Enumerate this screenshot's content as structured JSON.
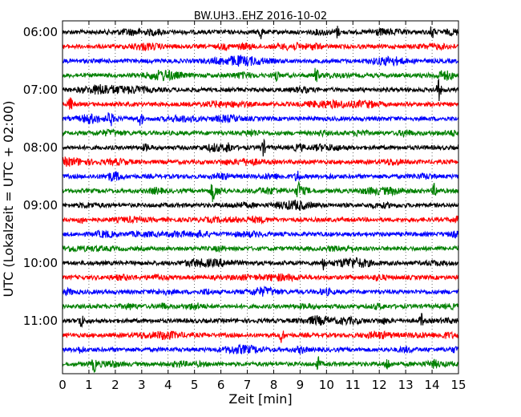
{
  "chart_data": {
    "type": "line",
    "title": "BW.UH3..EHZ 2016-10-02",
    "xlabel": "Zeit  [min]",
    "ylabel": "UTC (Lokalzeit = UTC + 02:00)",
    "xlim": [
      0,
      15
    ],
    "x_ticks": [
      "0",
      "1",
      "2",
      "3",
      "4",
      "5",
      "6",
      "7",
      "8",
      "9",
      "10",
      "11",
      "12",
      "13",
      "14",
      "15"
    ],
    "y_tick_labels": [
      "06:00",
      "07:00",
      "08:00",
      "09:00",
      "10:00",
      "11:00"
    ],
    "y_tick_trace_index": [
      0,
      4,
      8,
      12,
      16,
      20
    ],
    "grid_x": "dotted",
    "trace_interval_min": 15,
    "trace_colors": [
      "#000000",
      "#ff0000",
      "#0000ff",
      "#008000"
    ],
    "trace_start_times": [
      "06:00",
      "06:15",
      "06:30",
      "06:45",
      "07:00",
      "07:15",
      "07:30",
      "07:45",
      "08:00",
      "08:15",
      "08:30",
      "08:45",
      "09:00",
      "09:15",
      "09:30",
      "09:45",
      "10:00",
      "10:15",
      "10:30",
      "10:45",
      "11:00",
      "11:15",
      "11:30",
      "11:45"
    ],
    "events": [
      {
        "trace": 0,
        "x": 7.5,
        "amp": 1.6
      },
      {
        "trace": 0,
        "x": 10.4,
        "amp": 1.3
      },
      {
        "trace": 0,
        "x": 14.0,
        "amp": 1.4
      },
      {
        "trace": 3,
        "x": 9.6,
        "amp": 1.7
      },
      {
        "trace": 3,
        "x": 8.1,
        "amp": 1.3
      },
      {
        "trace": 4,
        "x": 14.25,
        "amp": 2.4
      },
      {
        "trace": 5,
        "x": 0.3,
        "amp": 1.5
      },
      {
        "trace": 6,
        "x": 1.8,
        "amp": 1.5
      },
      {
        "trace": 6,
        "x": 2.95,
        "amp": 1.8
      },
      {
        "trace": 8,
        "x": 7.6,
        "amp": 1.8
      },
      {
        "trace": 8,
        "x": 6.3,
        "amp": 1.3
      },
      {
        "trace": 10,
        "x": 8.9,
        "amp": 1.6
      },
      {
        "trace": 11,
        "x": 5.7,
        "amp": 2.2
      },
      {
        "trace": 11,
        "x": 8.95,
        "amp": 1.8
      },
      {
        "trace": 11,
        "x": 14.1,
        "amp": 1.6
      },
      {
        "trace": 16,
        "x": 9.9,
        "amp": 1.3
      },
      {
        "trace": 20,
        "x": 0.7,
        "amp": 1.7
      },
      {
        "trace": 20,
        "x": 13.6,
        "amp": 1.5
      },
      {
        "trace": 21,
        "x": 8.3,
        "amp": 1.6
      },
      {
        "trace": 23,
        "x": 1.2,
        "amp": 1.5
      },
      {
        "trace": 23,
        "x": 9.7,
        "amp": 1.5
      },
      {
        "trace": 23,
        "x": 12.3,
        "amp": 1.4
      }
    ]
  }
}
